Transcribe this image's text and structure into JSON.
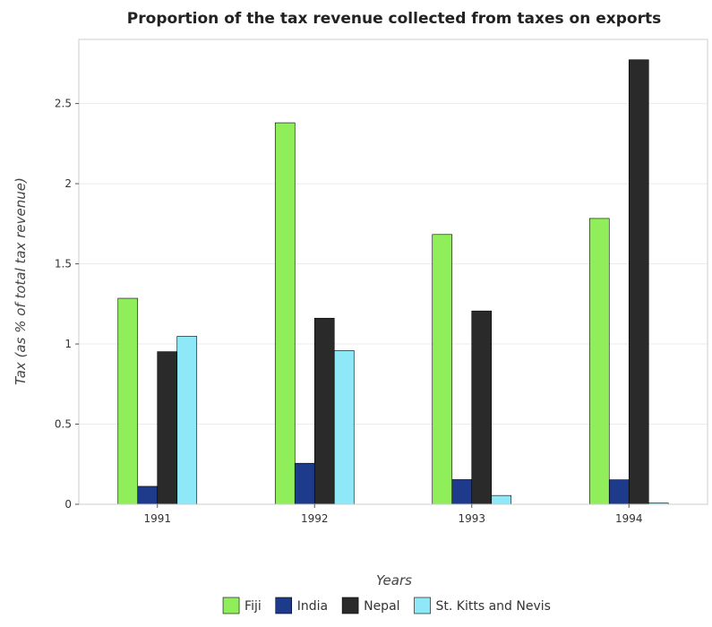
{
  "chart_data": {
    "type": "bar",
    "title": "Proportion of the tax revenue collected from taxes on exports",
    "xlabel": "Years",
    "ylabel": "Tax (as % of total tax revenue)",
    "categories": [
      "1991",
      "1992",
      "1993",
      "1994"
    ],
    "ylim": [
      0,
      2.9
    ],
    "yticks": [
      0,
      0.5,
      1,
      1.5,
      2,
      2.5
    ],
    "ytick_labels": [
      "0",
      "0.5",
      "1",
      "1.5",
      "2",
      "2.5"
    ],
    "grid": true,
    "legend_position": "bottom",
    "series": [
      {
        "name": "Fiji",
        "color": "#90ee5a",
        "values": [
          1.285,
          2.38,
          1.683,
          1.783
        ]
      },
      {
        "name": "India",
        "color": "#1e3a8a",
        "values": [
          0.112,
          0.256,
          0.154,
          0.153
        ]
      },
      {
        "name": "Nepal",
        "color": "#2a2a2a",
        "values": [
          0.952,
          1.161,
          1.206,
          2.773
        ]
      },
      {
        "name": "St. Kitts and Nevis",
        "color": "#8ee8f8",
        "values": [
          1.048,
          0.959,
          0.055,
          0.008
        ]
      }
    ]
  }
}
